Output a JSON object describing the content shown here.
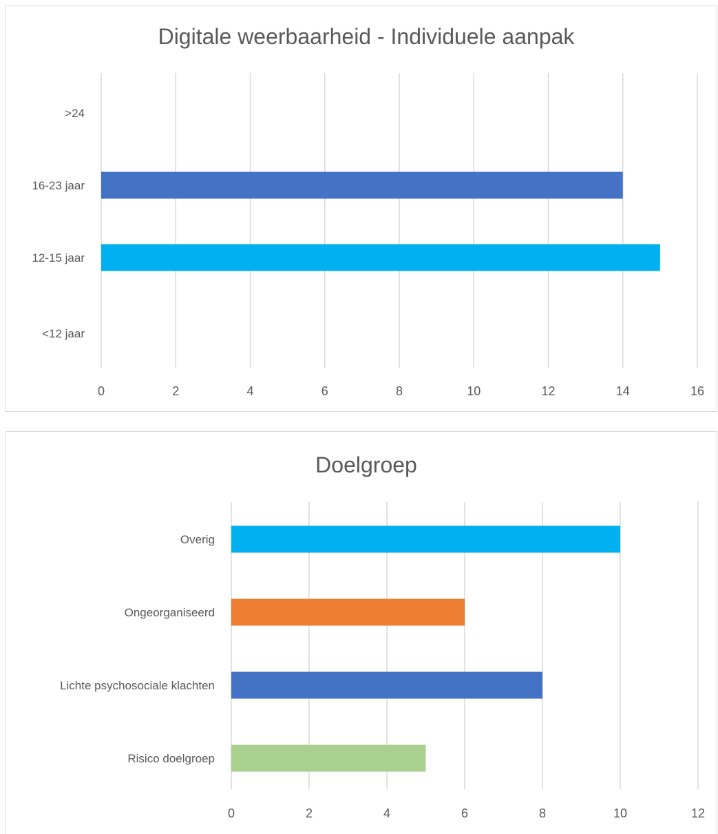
{
  "chart_data": [
    {
      "type": "bar",
      "orientation": "horizontal",
      "title": "Digitale weerbaarheid - Individuele aanpak",
      "categories": [
        ">24",
        "16-23 jaar",
        "12-15 jaar",
        "<12 jaar"
      ],
      "values": [
        0,
        14,
        15,
        0
      ],
      "colors": [
        "#4472c4",
        "#4472c4",
        "#00b0f0",
        "#4472c4"
      ],
      "xlim": [
        0,
        16
      ],
      "xticks": [
        "0",
        "2",
        "4",
        "6",
        "8",
        "10",
        "12",
        "14",
        "16"
      ],
      "grid": true,
      "legend": "none"
    },
    {
      "type": "bar",
      "orientation": "horizontal",
      "title": "Doelgroep",
      "categories": [
        "Overig",
        "Ongeorganiseerd",
        "Lichte psychosociale klachten",
        "Risico doelgroep"
      ],
      "values": [
        10,
        6,
        8,
        5
      ],
      "colors": [
        "#00b0f0",
        "#ed7d31",
        "#4472c4",
        "#a9d08e"
      ],
      "xlim": [
        0,
        12
      ],
      "xticks": [
        "0",
        "2",
        "4",
        "6",
        "8",
        "10",
        "12"
      ],
      "grid": true,
      "legend": "none"
    }
  ]
}
